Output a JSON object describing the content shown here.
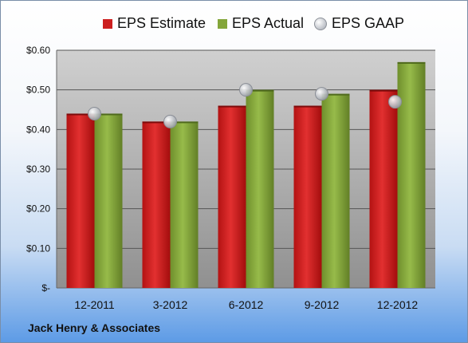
{
  "chart_data": {
    "type": "bar",
    "categories": [
      "12-2011",
      "3-2012",
      "6-2012",
      "9-2012",
      "12-2012"
    ],
    "series": [
      {
        "name": "EPS Estimate",
        "kind": "bar",
        "color": "#cc1f1f",
        "values": [
          0.44,
          0.42,
          0.46,
          0.46,
          0.5
        ]
      },
      {
        "name": "EPS Actual",
        "kind": "bar",
        "color": "#84a63a",
        "values": [
          0.44,
          0.42,
          0.5,
          0.49,
          0.57
        ]
      },
      {
        "name": "EPS GAAP",
        "kind": "marker",
        "color": "#b8bcc4",
        "values": [
          0.44,
          0.42,
          0.5,
          0.49,
          0.47
        ]
      }
    ],
    "yticks": [
      "$-",
      "$0.10",
      "$0.20",
      "$0.30",
      "$0.40",
      "$0.50",
      "$0.60"
    ],
    "ylim": [
      0,
      0.6
    ],
    "grid": true,
    "legend": "top"
  },
  "footer": {
    "company": "Jack Henry & Associates"
  }
}
